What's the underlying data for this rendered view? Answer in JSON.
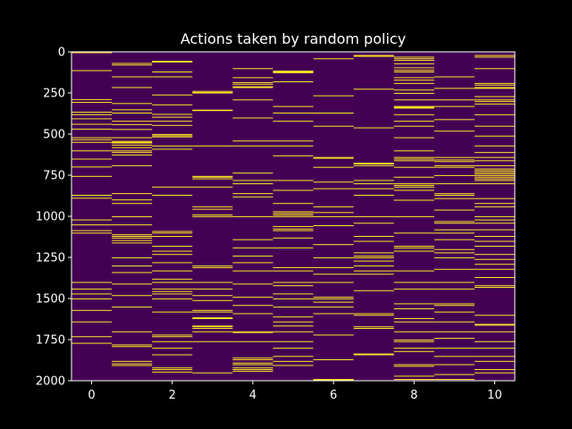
{
  "chart_data": {
    "type": "heatmap",
    "title": "Actions taken by random policy",
    "xlabel": "",
    "ylabel": "",
    "columns": 11,
    "rows": 2000,
    "xlim": [
      -0.5,
      10.5
    ],
    "ylim": [
      2000,
      0
    ],
    "y_inverted": true,
    "x_ticks": [
      0,
      2,
      4,
      6,
      8,
      10
    ],
    "x_tick_labels": [
      "0",
      "2",
      "4",
      "6",
      "8",
      "10"
    ],
    "y_ticks": [
      0,
      250,
      500,
      750,
      1000,
      1250,
      1500,
      1750,
      2000
    ],
    "y_tick_labels": [
      "0",
      "250",
      "500",
      "750",
      "1000",
      "1250",
      "1500",
      "1750",
      "2000"
    ],
    "colormap": "viridis",
    "value_range": [
      0,
      1
    ],
    "colors": {
      "low": "#440154",
      "high": "#fde725",
      "background": "#000000",
      "foreground": "#ffffff"
    },
    "grid": false,
    "legend": "none",
    "selected_steps": [
      [
        3,
        112,
        288,
        305,
        365,
        380,
        405,
        438,
        468,
        520,
        532,
        548,
        600,
        650,
        698,
        755,
        870,
        888,
        1020,
        1050,
        1085,
        1100,
        1400,
        1440,
        1470,
        1500,
        1570,
        1640,
        1730,
        1770
      ],
      [
        68,
        78,
        150,
        215,
        312,
        350,
        370,
        420,
        440,
        470,
        520,
        542,
        548,
        552,
        565,
        580,
        600,
        610,
        625,
        690,
        860,
        898,
        920,
        1000,
        1050,
        1110,
        1120,
        1130,
        1145,
        1160,
        1250,
        1300,
        1340,
        1410,
        1480,
        1550,
        1700,
        1780,
        1790,
        1880,
        1895,
        1905
      ],
      [
        55,
        60,
        120,
        150,
        260,
        320,
        378,
        395,
        420,
        445,
        500,
        508,
        515,
        570,
        590,
        820,
        870,
        1090,
        1100,
        1120,
        1180,
        1210,
        1230,
        1280,
        1330,
        1380,
        1400,
        1440,
        1455,
        1470,
        1500,
        1580,
        1720,
        1730,
        1760,
        1800,
        1840,
        1920,
        1930,
        1945
      ],
      [
        238,
        245,
        248,
        352,
        355,
        570,
        755,
        760,
        770,
        820,
        940,
        955,
        990,
        1000,
        1300,
        1310,
        1400,
        1440,
        1480,
        1510,
        1570,
        1580,
        1615,
        1620,
        1665,
        1670,
        1680,
        1700,
        1760,
        1950
      ],
      [
        100,
        155,
        185,
        195,
        210,
        215,
        290,
        400,
        540,
        570,
        735,
        780,
        800,
        860,
        880,
        1000,
        1140,
        1190,
        1240,
        1280,
        1330,
        1410,
        1490,
        1540,
        1590,
        1700,
        1705,
        1760,
        1860,
        1870,
        1890,
        1900,
        1920,
        1930,
        1940
      ],
      [
        115,
        120,
        125,
        180,
        330,
        370,
        420,
        540,
        570,
        630,
        780,
        840,
        920,
        970,
        980,
        990,
        1000,
        1060,
        1075,
        1085,
        1130,
        1190,
        1310,
        1330,
        1400,
        1420,
        1470,
        1500,
        1550,
        1610,
        1640,
        1665,
        1700,
        1760,
        1800,
        1850,
        1880,
        1905
      ],
      [
        40,
        265,
        370,
        450,
        640,
        645,
        700,
        790,
        830,
        940,
        975,
        1000,
        1055,
        1170,
        1250,
        1310,
        1350,
        1400,
        1490,
        1500,
        1520,
        1550,
        1590,
        1720,
        1870,
        1990,
        1995
      ],
      [
        20,
        25,
        225,
        460,
        675,
        680,
        690,
        780,
        800,
        830,
        870,
        1000,
        1040,
        1120,
        1150,
        1220,
        1240,
        1250,
        1270,
        1300,
        1330,
        1350,
        1450,
        1590,
        1600,
        1670,
        1680,
        1835,
        1840
      ],
      [
        30,
        40,
        50,
        70,
        95,
        110,
        120,
        155,
        170,
        190,
        230,
        250,
        290,
        330,
        335,
        340,
        380,
        420,
        450,
        520,
        600,
        640,
        650,
        660,
        700,
        760,
        800,
        810,
        820,
        840,
        900,
        1000,
        1100,
        1180,
        1190,
        1210,
        1330,
        1400,
        1440,
        1530,
        1560,
        1620,
        1640,
        1700,
        1750,
        1760,
        1800,
        1820,
        1900,
        1910,
        1970,
        1990
      ],
      [
        150,
        220,
        290,
        330,
        410,
        480,
        640,
        655,
        665,
        690,
        700,
        750,
        800,
        860,
        870,
        890,
        960,
        1030,
        1040,
        1080,
        1100,
        1140,
        1200,
        1220,
        1250,
        1320,
        1400,
        1440,
        1530,
        1540,
        1580,
        1640,
        1700,
        1740,
        1800,
        1850,
        1900,
        1960,
        1990
      ],
      [
        20,
        30,
        100,
        190,
        200,
        215,
        220,
        270,
        290,
        300,
        315,
        380,
        450,
        510,
        570,
        610,
        640,
        660,
        690,
        710,
        720,
        730,
        740,
        750,
        760,
        770,
        780,
        800,
        890,
        920,
        940,
        1000,
        1020,
        1040,
        1080,
        1120,
        1150,
        1180,
        1230,
        1260,
        1290,
        1320,
        1370,
        1420,
        1430,
        1600,
        1655,
        1660,
        1700,
        1760,
        1800,
        1850,
        1880,
        1930,
        1950
      ]
    ]
  }
}
